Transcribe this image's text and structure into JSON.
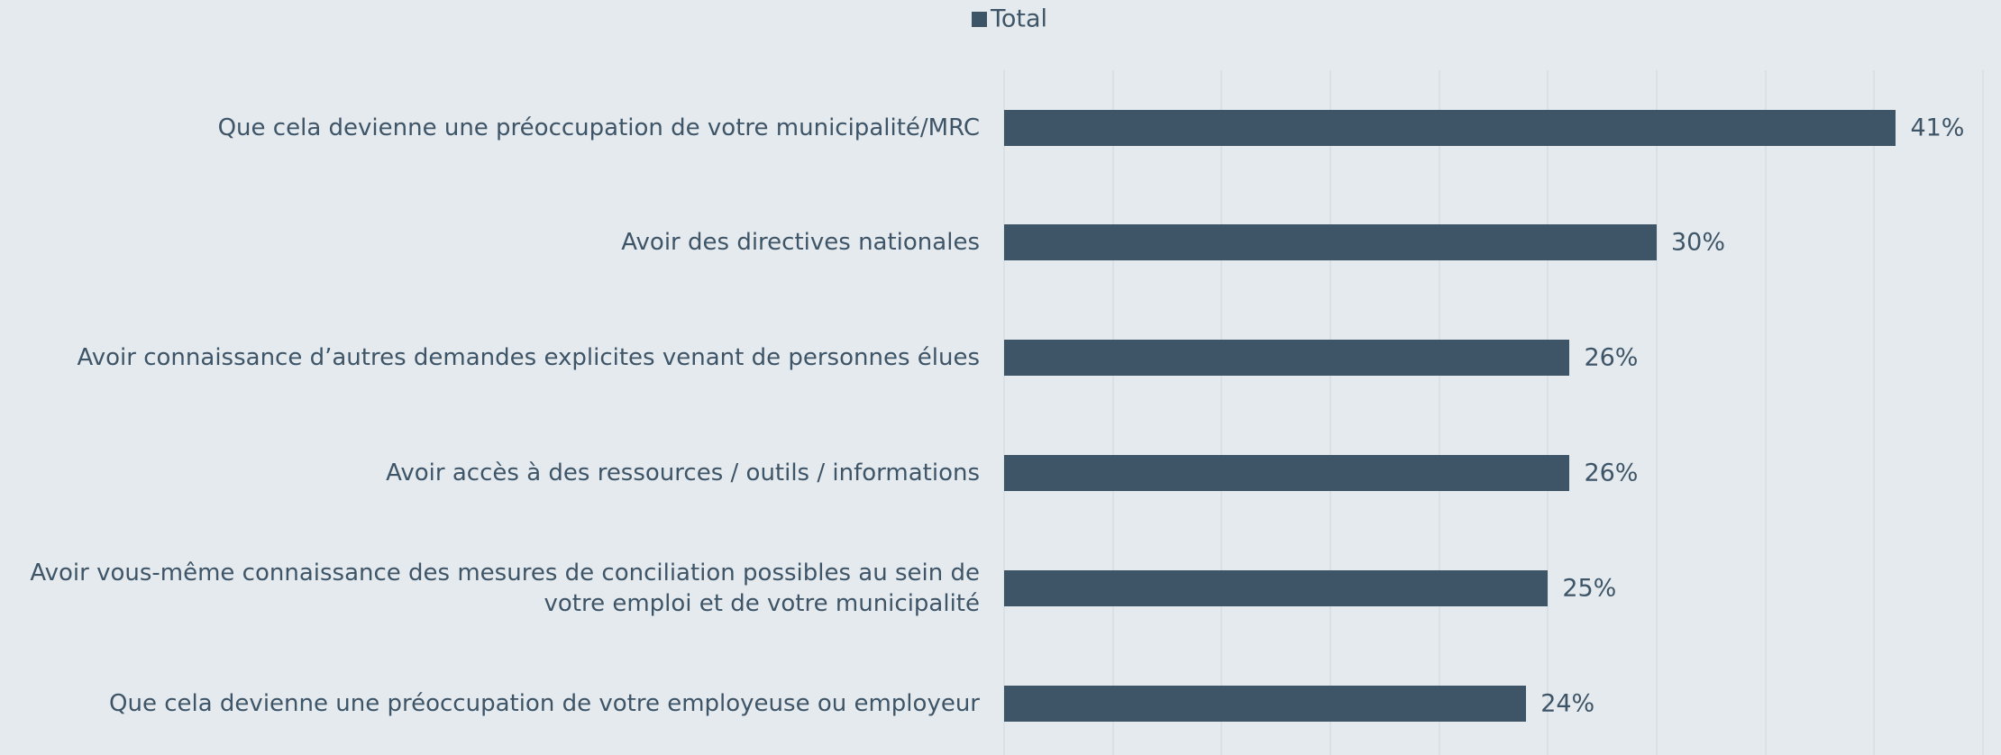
{
  "chart_data": {
    "type": "bar",
    "orientation": "horizontal",
    "categories": [
      "Que cela devienne une préoccupation de votre municipalité/MRC",
      "Avoir des directives nationales",
      "Avoir connaissance d’autres demandes explicites venant de personnes élues",
      "Avoir accès à des ressources / outils / informations",
      "Avoir vous-même connaissance des mesures de conciliation possibles au sein de votre emploi et de votre municipalité",
      "Que cela devienne une préoccupation de votre employeuse ou employeur"
    ],
    "series": [
      {
        "name": "Total",
        "color": "#3e5467",
        "values": [
          41,
          30,
          26,
          26,
          25,
          24
        ],
        "value_labels": [
          "41%",
          "30%",
          "26%",
          "26%",
          "25%",
          "24%"
        ]
      }
    ],
    "xlim": [
      0,
      45
    ],
    "xticks": [
      0,
      5,
      10,
      15,
      20,
      25,
      30,
      35,
      40,
      45
    ],
    "grid": true,
    "legend": "top"
  }
}
